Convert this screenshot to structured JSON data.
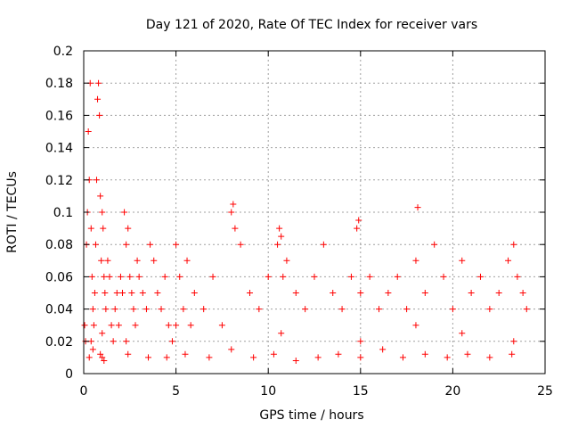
{
  "chart_data": {
    "type": "scatter",
    "title": "Day 121 of 2020, Rate Of TEC Index for receiver vars",
    "xlabel": "GPS time / hours",
    "ylabel": "ROTI / TECUs",
    "xlim": [
      0,
      25
    ],
    "ylim": [
      0,
      0.2
    ],
    "x_ticks": [
      0,
      5,
      10,
      15,
      20,
      25
    ],
    "x_tick_labels": [
      "0",
      "5",
      "10",
      "15",
      "20",
      "25"
    ],
    "y_ticks": [
      0,
      0.02,
      0.04,
      0.06,
      0.08,
      0.1,
      0.12,
      0.14,
      0.16,
      0.18,
      0.2
    ],
    "y_tick_labels": [
      "0",
      "0.02",
      "0.04",
      "0.06",
      "0.08",
      "0.1",
      "0.12",
      "0.14",
      "0.16",
      "0.18",
      "0.2"
    ],
    "grid": true,
    "marker": "+",
    "series": [
      {
        "name": "ROTI",
        "color": "#ff0000",
        "x": [
          0.05,
          0.1,
          0.15,
          0.2,
          0.25,
          0.3,
          0.35,
          0.4,
          0.45,
          0.5,
          0.55,
          0.6,
          0.65,
          0.7,
          0.75,
          0.8,
          0.85,
          0.9,
          0.95,
          1.0,
          1.05,
          1.1,
          1.15,
          1.2,
          1.3,
          1.4,
          1.5,
          1.6,
          1.7,
          1.8,
          1.9,
          2.0,
          2.1,
          2.2,
          2.3,
          2.4,
          2.5,
          2.6,
          2.7,
          2.8,
          2.9,
          3.0,
          3.2,
          3.4,
          3.6,
          3.8,
          4.0,
          4.2,
          4.4,
          4.6,
          4.8,
          5.0,
          5.2,
          5.4,
          5.6,
          5.8,
          6.0,
          6.5,
          7.0,
          7.5,
          8.0,
          8.1,
          8.2,
          8.5,
          9.0,
          9.5,
          10.0,
          10.5,
          10.6,
          10.7,
          10.8,
          11.0,
          11.5,
          12.0,
          12.5,
          13.0,
          13.5,
          14.0,
          14.5,
          14.8,
          14.9,
          15.0,
          15.5,
          16.0,
          16.5,
          17.0,
          17.5,
          18.0,
          18.1,
          18.5,
          19.0,
          19.5,
          20.0,
          20.5,
          21.0,
          21.5,
          22.0,
          22.5,
          23.0,
          23.3,
          23.5,
          23.8,
          24.0,
          0.3,
          0.5,
          0.9,
          1.0,
          1.1,
          2.4,
          3.5,
          4.5,
          5.5,
          6.8,
          8.0,
          9.2,
          10.3,
          11.5,
          12.7,
          13.8,
          15.0,
          16.2,
          17.3,
          18.5,
          19.7,
          20.8,
          22.0,
          23.2,
          0.4,
          1.0,
          2.3,
          5.0,
          10.7,
          15.0,
          18.0,
          20.5,
          23.3
        ],
        "y": [
          0.03,
          0.02,
          0.08,
          0.1,
          0.15,
          0.12,
          0.18,
          0.09,
          0.06,
          0.04,
          0.03,
          0.05,
          0.08,
          0.12,
          0.17,
          0.18,
          0.16,
          0.11,
          0.07,
          0.1,
          0.09,
          0.06,
          0.05,
          0.04,
          0.07,
          0.06,
          0.03,
          0.02,
          0.04,
          0.05,
          0.03,
          0.06,
          0.05,
          0.1,
          0.08,
          0.09,
          0.06,
          0.05,
          0.04,
          0.03,
          0.07,
          0.06,
          0.05,
          0.04,
          0.08,
          0.07,
          0.05,
          0.04,
          0.06,
          0.03,
          0.02,
          0.08,
          0.06,
          0.04,
          0.07,
          0.03,
          0.05,
          0.04,
          0.06,
          0.03,
          0.1,
          0.105,
          0.09,
          0.08,
          0.05,
          0.04,
          0.06,
          0.08,
          0.09,
          0.085,
          0.06,
          0.07,
          0.05,
          0.04,
          0.06,
          0.08,
          0.05,
          0.04,
          0.06,
          0.09,
          0.095,
          0.05,
          0.06,
          0.04,
          0.05,
          0.06,
          0.04,
          0.07,
          0.103,
          0.05,
          0.08,
          0.06,
          0.04,
          0.07,
          0.05,
          0.06,
          0.04,
          0.05,
          0.07,
          0.08,
          0.06,
          0.05,
          0.04,
          0.01,
          0.015,
          0.012,
          0.01,
          0.008,
          0.012,
          0.01,
          0.01,
          0.012,
          0.01,
          0.015,
          0.01,
          0.012,
          0.008,
          0.01,
          0.012,
          0.01,
          0.015,
          0.01,
          0.012,
          0.01,
          0.012,
          0.01,
          0.012,
          0.02,
          0.025,
          0.02,
          0.03,
          0.025,
          0.02,
          0.03,
          0.025,
          0.02
        ]
      }
    ]
  }
}
